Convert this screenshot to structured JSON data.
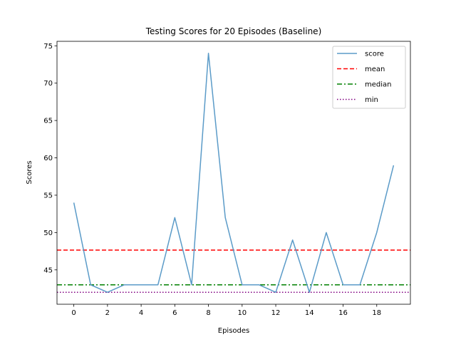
{
  "chart_data": {
    "type": "line",
    "title": "Testing Scores for 20 Episodes (Baseline)",
    "xlabel": "Episodes",
    "ylabel": "Scores",
    "xlim": [
      -1,
      20
    ],
    "ylim": [
      40.4,
      75.6
    ],
    "xticks": [
      0,
      2,
      4,
      6,
      8,
      10,
      12,
      14,
      16,
      18
    ],
    "yticks": [
      45,
      50,
      55,
      60,
      65,
      70,
      75
    ],
    "x": [
      0,
      1,
      2,
      3,
      4,
      5,
      6,
      7,
      8,
      9,
      10,
      11,
      12,
      13,
      14,
      15,
      16,
      17,
      18,
      19
    ],
    "series": [
      {
        "name": "score",
        "values": [
          54,
          43,
          42,
          43,
          43,
          43,
          52,
          43,
          74,
          52,
          43,
          43,
          42,
          49,
          42,
          50,
          43,
          43,
          50,
          59
        ],
        "color": "#5b9bc8",
        "style": "solid"
      }
    ],
    "hlines": [
      {
        "name": "mean",
        "value": 47.65,
        "color": "#ff0000",
        "style": "dashed"
      },
      {
        "name": "median",
        "value": 43,
        "color": "#008000",
        "style": "dashdot"
      },
      {
        "name": "min",
        "value": 42,
        "color": "#800080",
        "style": "dotted"
      }
    ],
    "legend": {
      "position": "top-right",
      "entries": [
        "score",
        "mean",
        "median",
        "min"
      ]
    },
    "grid": false
  }
}
